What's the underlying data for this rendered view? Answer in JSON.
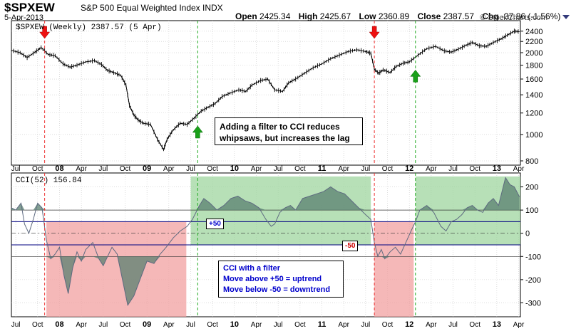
{
  "header": {
    "symbol": "$SPXEW",
    "full_name": "S&P 500 Equal Weighted Index  INDX",
    "date": "5-Apr-2013",
    "open_label": "Open",
    "open_value": "2425.34",
    "high_label": "High",
    "high_value": "2425.67",
    "low_label": "Low",
    "low_value": "2360.89",
    "close_label": "Close",
    "close_value": "2387.57",
    "chg_label": "Chg",
    "chg_value": "-37.86 (-1.56%)",
    "copyright": "© StockCharts.com"
  },
  "colors": {
    "price_line": "#000000",
    "cci_line": "#5e6a80",
    "cci_fill": "#5a8070",
    "green_zone": "#9fd69f",
    "red_zone": "#f2a0a0",
    "level_line": "#000080",
    "green_arrow": "#1aa01a",
    "red_arrow": "#ee1111",
    "grid": "#c8c8c8"
  },
  "annotations": {
    "filter_note": "Adding a filter to CCI reduces whipsaws, but increases the lag",
    "cci_note_title": "CCI with a filter",
    "cci_note_up": "Move above +50 = uptrend",
    "cci_note_down": "Move below -50 = downtrend",
    "plus50": "+50",
    "minus50": "-50"
  },
  "chart_data": [
    {
      "type": "line",
      "panel": "price",
      "legend": "$SPXEW (Weekly) 2387.57 (5 Apr)",
      "y_scale": "log",
      "ylim": [
        800,
        2500
      ],
      "y_ticks": [
        800,
        1000,
        1200,
        1400,
        1600,
        1800,
        2000,
        2200,
        2400
      ],
      "x_ticks": [
        "Jul",
        "Oct",
        "08",
        "Apr",
        "Jul",
        "Oct",
        "09",
        "Apr",
        "Jul",
        "Oct",
        "10",
        "Apr",
        "Jul",
        "Oct",
        "11",
        "Apr",
        "Jul",
        "Oct",
        "12",
        "Apr",
        "Jul",
        "Oct",
        "13",
        "Apr"
      ],
      "x_tick_bold": [
        "08",
        "09",
        "10",
        "11",
        "12",
        "13"
      ],
      "x_range": [
        2007.45,
        2013.27
      ],
      "series": [
        {
          "x": [
            2007.45,
            2007.55,
            2007.63,
            2007.72,
            2007.79,
            2007.87,
            2007.95,
            2008.04,
            2008.12,
            2008.2,
            2008.3,
            2008.4,
            2008.48,
            2008.55,
            2008.62,
            2008.7,
            2008.76,
            2008.8,
            2008.85,
            2008.9,
            2008.96,
            2009.04,
            2009.12,
            2009.19,
            2009.23,
            2009.3,
            2009.38,
            2009.46,
            2009.54,
            2009.62,
            2009.7,
            2009.78,
            2009.86,
            2009.95,
            2010.05,
            2010.13,
            2010.2,
            2010.3,
            2010.38,
            2010.46,
            2010.55,
            2010.62,
            2010.7,
            2010.8,
            2010.9,
            2011.0,
            2011.1,
            2011.2,
            2011.3,
            2011.4,
            2011.5,
            2011.56,
            2011.6,
            2011.65,
            2011.7,
            2011.78,
            2011.85,
            2011.93,
            2012.0,
            2012.1,
            2012.2,
            2012.3,
            2012.4,
            2012.48,
            2012.56,
            2012.65,
            2012.72,
            2012.8,
            2012.88,
            2012.96,
            2013.05,
            2013.12,
            2013.2,
            2013.26
          ],
          "values": [
            2040,
            2000,
            1920,
            2010,
            2090,
            1970,
            1950,
            1820,
            1770,
            1800,
            1850,
            1870,
            1810,
            1720,
            1690,
            1650,
            1520,
            1280,
            1180,
            1130,
            1100,
            1090,
            960,
            880,
            960,
            1040,
            1100,
            1090,
            1150,
            1220,
            1260,
            1300,
            1380,
            1420,
            1460,
            1440,
            1520,
            1580,
            1600,
            1460,
            1440,
            1550,
            1600,
            1680,
            1760,
            1820,
            1900,
            1960,
            2020,
            2050,
            2020,
            1990,
            1740,
            1680,
            1730,
            1690,
            1780,
            1830,
            1850,
            1960,
            2070,
            2110,
            2030,
            2010,
            2060,
            2130,
            2180,
            2120,
            2110,
            2180,
            2250,
            2320,
            2400,
            2390
          ]
        }
      ],
      "signals": [
        {
          "type": "sell",
          "x": 2007.83
        },
        {
          "type": "buy",
          "x": 2009.58
        },
        {
          "type": "sell",
          "x": 2011.6
        },
        {
          "type": "buy",
          "x": 2012.07
        }
      ]
    },
    {
      "type": "area",
      "panel": "indicator",
      "legend": "CCI(52) 156.84",
      "ylim": [
        -360,
        260
      ],
      "y_ticks": [
        -300,
        -200,
        -100,
        0,
        100,
        200
      ],
      "levels": [
        100,
        50,
        0,
        -50,
        -100
      ],
      "zones": [
        {
          "type": "red",
          "x": [
            2007.85,
            2009.45
          ],
          "y": [
            -375,
            50
          ]
        },
        {
          "type": "green",
          "x": [
            2009.5,
            2011.56
          ],
          "y": [
            -50,
            245
          ]
        },
        {
          "type": "red",
          "x": [
            2011.6,
            2012.05
          ],
          "y": [
            -375,
            50
          ]
        },
        {
          "type": "green",
          "x": [
            2012.07,
            2013.27
          ],
          "y": [
            -50,
            245
          ]
        }
      ],
      "series": [
        {
          "x": [
            2007.45,
            2007.5,
            2007.56,
            2007.6,
            2007.65,
            2007.7,
            2007.75,
            2007.8,
            2007.85,
            2007.9,
            2007.95,
            2008.0,
            2008.05,
            2008.1,
            2008.15,
            2008.2,
            2008.25,
            2008.3,
            2008.38,
            2008.45,
            2008.5,
            2008.55,
            2008.6,
            2008.66,
            2008.72,
            2008.78,
            2008.85,
            2008.92,
            2009.0,
            2009.08,
            2009.15,
            2009.22,
            2009.3,
            2009.38,
            2009.46,
            2009.52,
            2009.56,
            2009.6,
            2009.65,
            2009.72,
            2009.8,
            2009.88,
            2009.96,
            2010.04,
            2010.12,
            2010.2,
            2010.28,
            2010.36,
            2010.42,
            2010.46,
            2010.52,
            2010.58,
            2010.64,
            2010.7,
            2010.78,
            2010.86,
            2010.94,
            2011.02,
            2011.1,
            2011.18,
            2011.26,
            2011.34,
            2011.42,
            2011.5,
            2011.56,
            2011.6,
            2011.64,
            2011.68,
            2011.72,
            2011.78,
            2011.84,
            2011.9,
            2011.96,
            2012.02,
            2012.07,
            2012.12,
            2012.2,
            2012.28,
            2012.36,
            2012.42,
            2012.48,
            2012.54,
            2012.6,
            2012.66,
            2012.72,
            2012.78,
            2012.84,
            2012.9,
            2012.96,
            2013.02,
            2013.06,
            2013.1,
            2013.15,
            2013.2,
            2013.26
          ],
          "values": [
            110,
            100,
            130,
            40,
            0,
            60,
            130,
            110,
            -30,
            -110,
            -90,
            -60,
            -180,
            -260,
            -150,
            -80,
            -120,
            -70,
            -40,
            -110,
            -140,
            -100,
            -60,
            -90,
            -200,
            -310,
            -270,
            -200,
            -120,
            -130,
            -90,
            -60,
            -20,
            10,
            30,
            60,
            90,
            120,
            150,
            130,
            100,
            120,
            150,
            160,
            140,
            130,
            110,
            60,
            30,
            40,
            90,
            110,
            120,
            100,
            150,
            160,
            170,
            180,
            200,
            180,
            170,
            140,
            110,
            80,
            60,
            -40,
            -100,
            -70,
            -110,
            -80,
            -60,
            -90,
            -40,
            10,
            50,
            100,
            120,
            90,
            30,
            10,
            50,
            60,
            80,
            110,
            120,
            100,
            90,
            130,
            150,
            120,
            180,
            240,
            210,
            200,
            157
          ]
        }
      ]
    }
  ]
}
